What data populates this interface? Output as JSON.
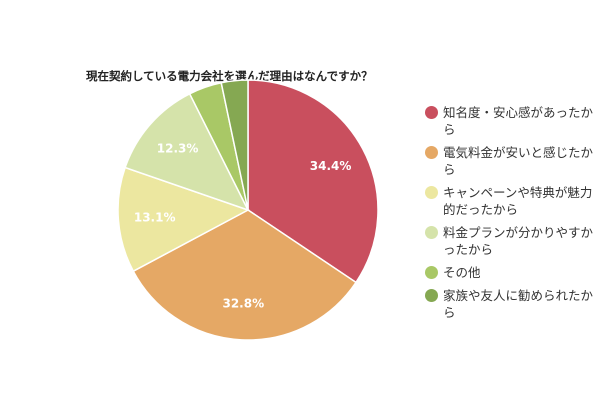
{
  "chart_data": {
    "type": "pie",
    "title": "現在契約している電力会社を選んだ理由はなんですか？",
    "legend_position": "right",
    "slices": [
      {
        "label": "知名度・安心感があったから",
        "value": 34.4,
        "value_label": "34.4%",
        "color": "#c94f5e"
      },
      {
        "label": "電気料金が安いと感じたから",
        "value": 32.8,
        "value_label": "32.8%",
        "color": "#e5a865"
      },
      {
        "label": "キャンペーンや特典が魅力的だったから",
        "value": 13.1,
        "value_label": "13.1%",
        "color": "#ece7a0"
      },
      {
        "label": "料金プランが分かりやすかったから",
        "value": 12.3,
        "value_label": "12.3%",
        "color": "#d5e3aa"
      },
      {
        "label": "その他",
        "value": 4.1,
        "value_label": "",
        "color": "#a9c866"
      },
      {
        "label": "家族や友人に勧められたから",
        "value": 3.3,
        "value_label": "",
        "color": "#85a852"
      }
    ]
  }
}
